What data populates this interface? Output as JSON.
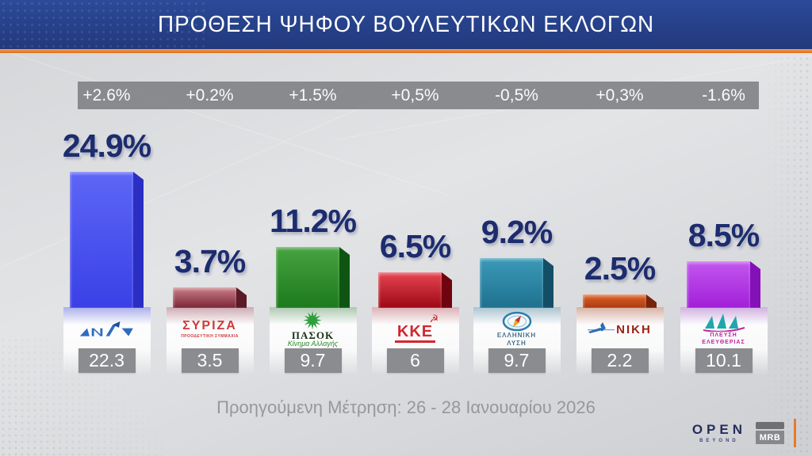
{
  "header": {
    "title": "ΠΡΟΘΕΣΗ ΨΗΦΟΥ ΒΟΥΛΕΥΤΙΚΩΝ ΕΚΛΟΓΩΝ"
  },
  "footer": {
    "note": "Προηγούμενη Μέτρηση: 26 - 28 Ιανουαρίου 2026",
    "open_logo": "OPEN",
    "open_sub": "BEYOND",
    "mrb_logo": "MRB"
  },
  "chart_data": {
    "type": "bar",
    "title": "ΠΡΟΘΕΣΗ ΨΗΦΟΥ ΒΟΥΛΕΥΤΙΚΩΝ ΕΚΛΟΓΩΝ",
    "categories": [
      "ΝΔ",
      "ΣΥΡΙΖΑ",
      "ΠΑΣΟΚ",
      "ΚΚΕ",
      "ΕΛΛΗΝΙΚΗ ΛΥΣΗ",
      "ΝΙΚΗ",
      "ΠΛΕΥΣΗ ΕΛΕΥΘΕΡΙΑΣ"
    ],
    "series": [
      {
        "name": "current",
        "values": [
          24.9,
          3.7,
          11.2,
          6.5,
          9.2,
          2.5,
          8.5
        ]
      },
      {
        "name": "previous",
        "values": [
          22.3,
          3.5,
          9.7,
          6,
          9.7,
          2.2,
          10.1
        ]
      }
    ],
    "changes": [
      "+2.6%",
      "+0.2%",
      "+1.5%",
      "+0,5%",
      "-0,5%",
      "+0,3%",
      "-1.6%"
    ],
    "note": "Προηγούμενη Μέτρηση: 26 - 28 Ιανουαρίου 2026",
    "unit": "%",
    "ylim": [
      0,
      26
    ],
    "grid": false,
    "legend": false
  },
  "parties": [
    {
      "name": "ΝΔ",
      "value": 24.9,
      "value_label": "24.9%",
      "change": "+2.6%",
      "previous": "22.3",
      "logo": {
        "icon": "nd-flag",
        "lines": []
      },
      "colors": {
        "front_top": "#5d66f6",
        "front_bottom": "#3a40e6",
        "side": "#2a2ec2",
        "tint": "rgba(90,99,240,0.40)",
        "accent": "#2e6cbe"
      }
    },
    {
      "name": "ΣΥΡΙΖΑ",
      "value": 3.7,
      "value_label": "3.7%",
      "change": "+0.2%",
      "previous": "3.5",
      "logo": {
        "icon": "none",
        "lines": [
          "ΣΥΡΙΖΑ",
          "ΠΡΟΟΔΕΥΤΙΚΗ ΣΥΜΜΑΧΙΑ"
        ]
      },
      "colors": {
        "front_top": "#c97f8a",
        "front_bottom": "#7c2534",
        "side": "#5c1a26",
        "tint": "rgba(170,70,85,0.35)",
        "accent": "#d03a3a"
      }
    },
    {
      "name": "ΠΑΣΟΚ",
      "value": 11.2,
      "value_label": "11.2%",
      "change": "+1.5%",
      "previous": "9.7",
      "logo": {
        "icon": "pasok-sun",
        "lines": [
          "ΠΑΣΟΚ",
          "Κίνημα Αλλαγής"
        ]
      },
      "colors": {
        "front_top": "#46a33f",
        "front_bottom": "#1d7a1d",
        "side": "#0f5512",
        "tint": "rgba(70,150,70,0.32)",
        "accent": "#2e9e3e"
      }
    },
    {
      "name": "ΚΚΕ",
      "value": 6.5,
      "value_label": "6.5%",
      "change": "+0,5%",
      "previous": "6",
      "logo": {
        "icon": "hammer-sickle",
        "lines": [
          "ΚΚΕ"
        ]
      },
      "colors": {
        "front_top": "#e84552",
        "front_bottom": "#9c0814",
        "side": "#6e040d",
        "tint": "rgba(220,70,80,0.30)",
        "accent": "#d42730"
      }
    },
    {
      "name": "ΕΛΛΗΝΙΚΗ ΛΥΣΗ",
      "value": 9.2,
      "value_label": "9.2%",
      "change": "-0,5%",
      "previous": "9.7",
      "logo": {
        "icon": "el-compass",
        "lines": [
          "ΕΛΛΗΝΙΚΗ",
          "ΛΥΣΗ"
        ]
      },
      "colors": {
        "front_top": "#3b9ab8",
        "front_bottom": "#1e718f",
        "side": "#124f66",
        "tint": "rgba(80,150,180,0.35)",
        "accent": "#2a7fae"
      }
    },
    {
      "name": "ΝΙΚΗ",
      "value": 2.5,
      "value_label": "2.5%",
      "change": "+0,3%",
      "previous": "2.2",
      "logo": {
        "icon": "niki-propeller",
        "lines": [
          "ΝΙΚΗ"
        ]
      },
      "colors": {
        "front_top": "#e06228",
        "front_bottom": "#aa3a10",
        "side": "#76230b",
        "tint": "rgba(215,95,50,0.33)",
        "accent": "#2a6db5"
      }
    },
    {
      "name": "ΠΛΕΥΣΗ ΕΛΕΥΘΕΡΙΑΣ",
      "value": 8.5,
      "value_label": "8.5%",
      "change": "-1.6%",
      "previous": "10.1",
      "logo": {
        "icon": "plefsi-sailboat",
        "lines": [
          "ΠΛΕΥΣΗ",
          "ΕΛΕΥΘΕΡΙΑΣ"
        ]
      },
      "colors": {
        "front_top": "#c257ef",
        "front_bottom": "#a21fd8",
        "side": "#8410b8",
        "tint": "rgba(195,95,235,0.33)",
        "accent": "#1fa7ad"
      }
    }
  ]
}
